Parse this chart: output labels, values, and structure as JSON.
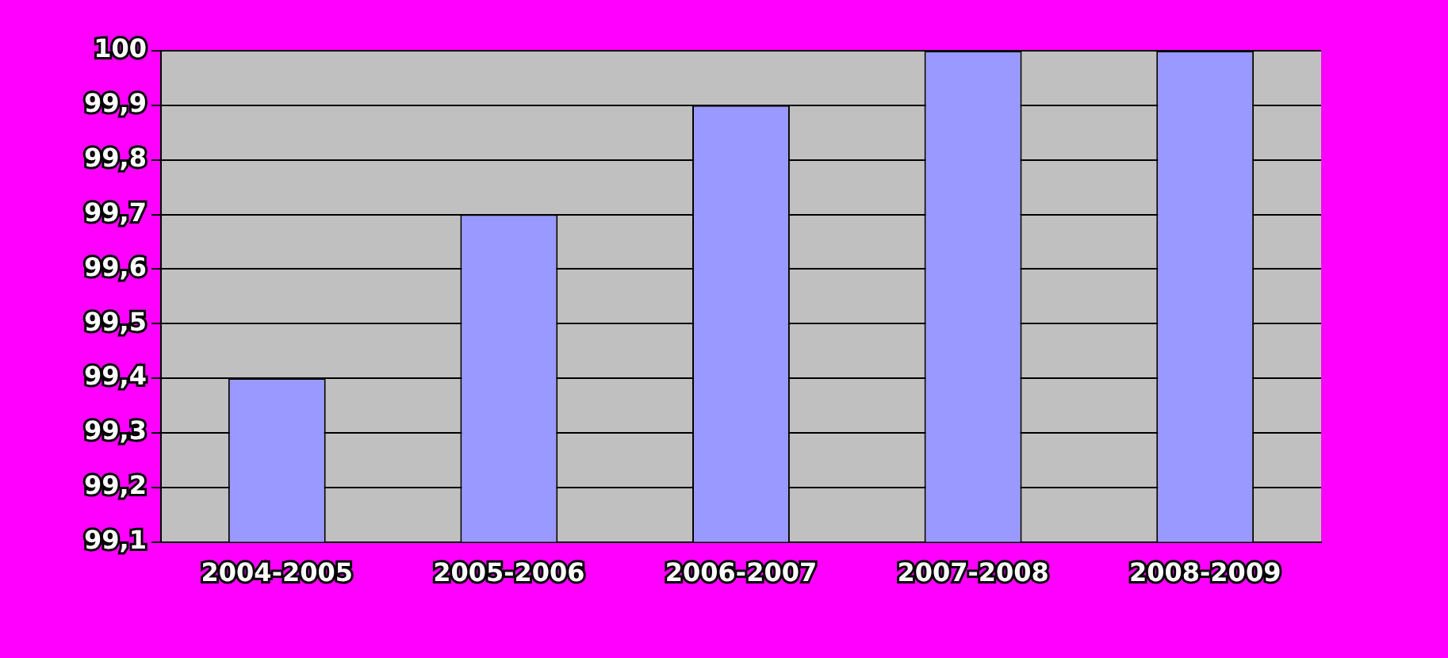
{
  "chart_data": {
    "type": "bar",
    "categories": [
      "2004-2005",
      "2005-2006",
      "2006-2007",
      "2007-2008",
      "2008-2009"
    ],
    "values": [
      99.4,
      99.7,
      99.9,
      100,
      100
    ],
    "color": "#9999ff",
    "ylim": [
      99.1,
      100
    ],
    "yticks": [
      {
        "value": 99.1,
        "label": "99,1"
      },
      {
        "value": 99.2,
        "label": "99,2"
      },
      {
        "value": 99.3,
        "label": "99,3"
      },
      {
        "value": 99.4,
        "label": "99,4"
      },
      {
        "value": 99.5,
        "label": "99,5"
      },
      {
        "value": 99.6,
        "label": "99,6"
      },
      {
        "value": 99.7,
        "label": "99,7"
      },
      {
        "value": 99.8,
        "label": "99,8"
      },
      {
        "value": 99.9,
        "label": "99,9"
      },
      {
        "value": 100,
        "label": "100"
      }
    ],
    "grid": "y",
    "legend": false
  }
}
